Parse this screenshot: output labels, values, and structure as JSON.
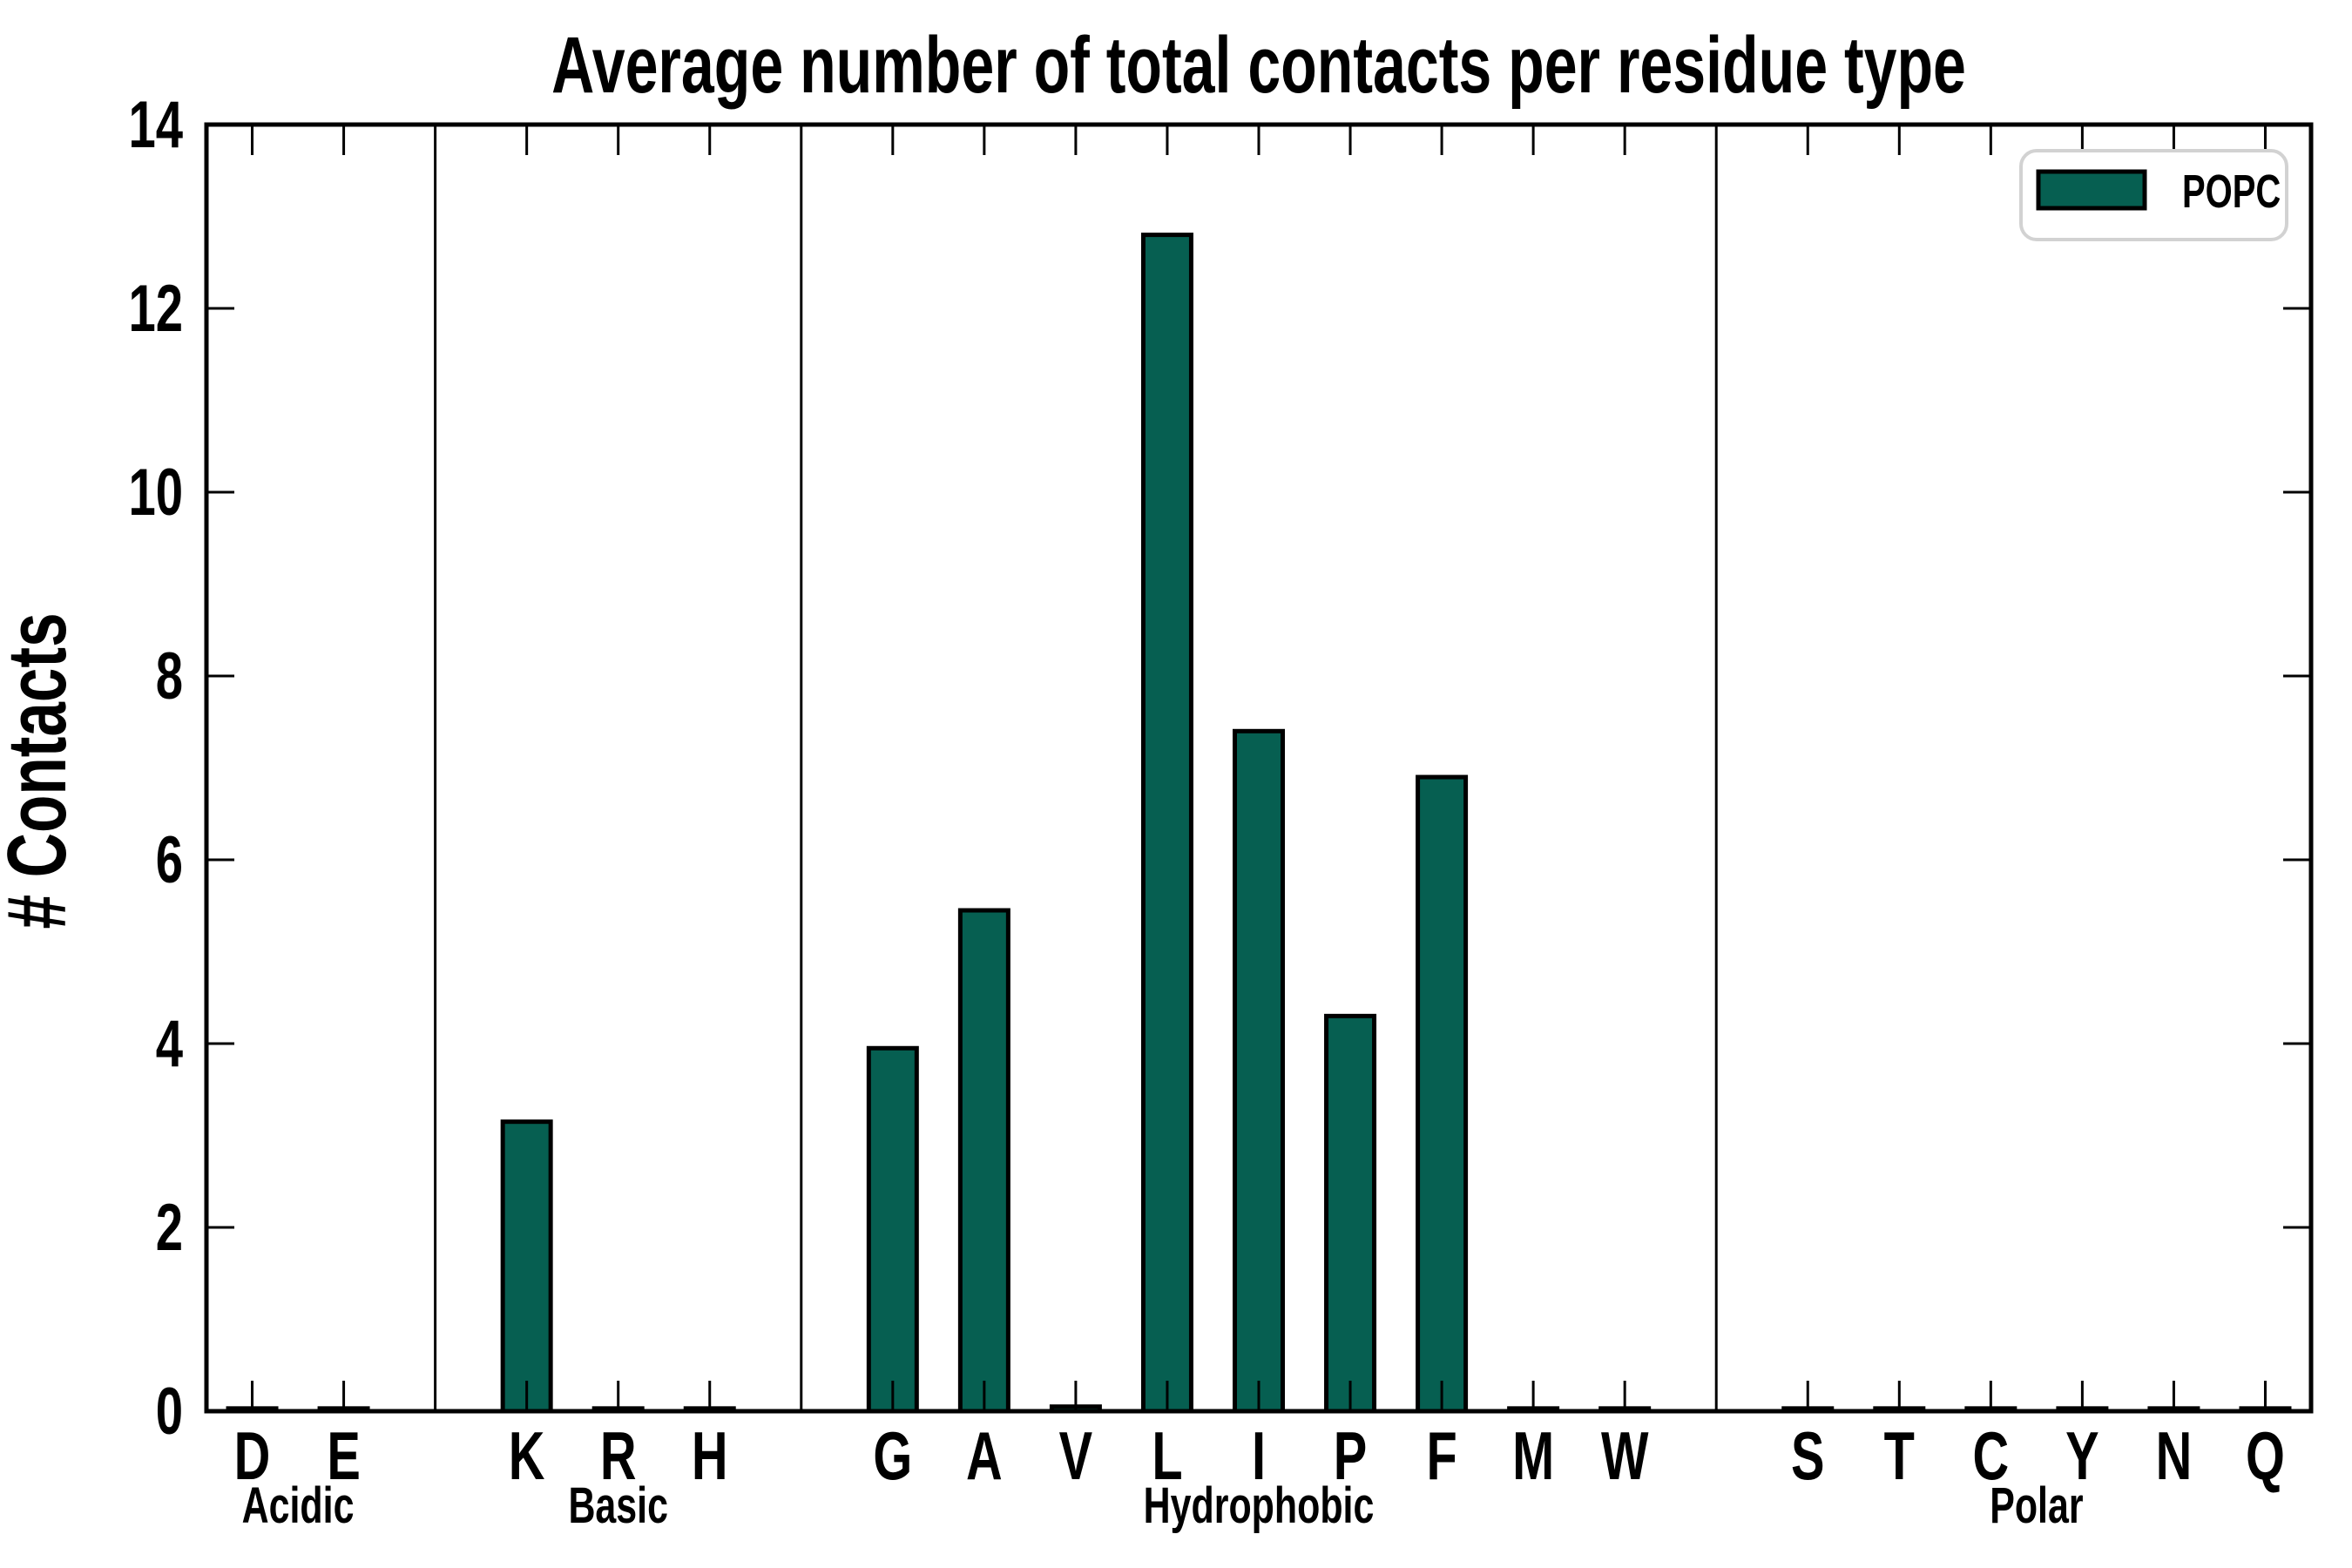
{
  "chart_data": {
    "type": "bar",
    "title": "Average number of total contacts per residue type",
    "ylabel": "# Contacts",
    "xlabel": "",
    "ylim": [
      0,
      14
    ],
    "yticks": [
      0,
      2,
      4,
      6,
      8,
      10,
      12,
      14
    ],
    "grid": false,
    "categories": [
      "D",
      "E",
      "K",
      "R",
      "H",
      "G",
      "A",
      "V",
      "L",
      "I",
      "P",
      "F",
      "M",
      "W",
      "S",
      "T",
      "C",
      "Y",
      "N",
      "Q"
    ],
    "values": [
      0.03,
      0.03,
      3.15,
      0.03,
      0.03,
      3.95,
      5.45,
      0.05,
      12.8,
      7.4,
      4.3,
      6.9,
      0.03,
      0.03,
      0.03,
      0.03,
      0.03,
      0.03,
      0.03,
      0.03
    ],
    "groups": [
      {
        "label": "Acidic",
        "members": [
          "D",
          "E"
        ]
      },
      {
        "label": "Basic",
        "members": [
          "K",
          "R",
          "H"
        ]
      },
      {
        "label": "Hydrophobic",
        "members": [
          "G",
          "A",
          "V",
          "L",
          "I",
          "P",
          "F",
          "M",
          "W"
        ]
      },
      {
        "label": "Polar",
        "members": [
          "S",
          "T",
          "C",
          "Y",
          "N",
          "Q"
        ]
      }
    ],
    "series": [
      {
        "name": "POPC",
        "color": "#065f51"
      }
    ],
    "legend": {
      "position": "upper right",
      "entries": [
        {
          "label": "POPC",
          "color": "#065f51"
        }
      ]
    },
    "colors": {
      "bar_fill": "#065f51",
      "bar_edge": "#000000",
      "axis": "#000000",
      "legend_border": "#d2d2d2",
      "legend_fill": "#ffffff",
      "background": "#ffffff"
    }
  }
}
